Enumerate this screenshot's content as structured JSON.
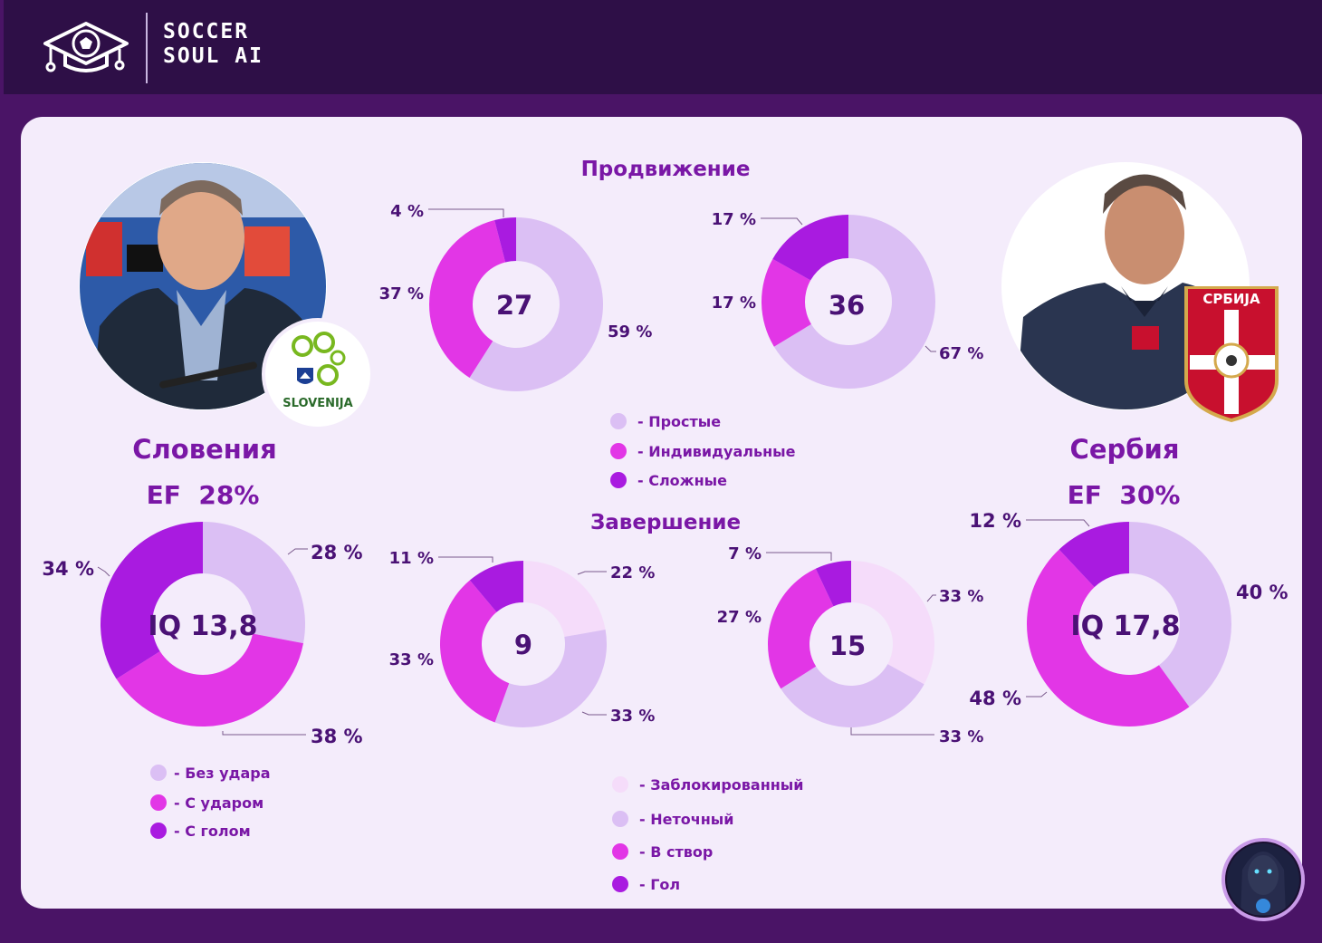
{
  "header": {
    "brand_line1": "SOCCER",
    "brand_line2": "SOUL AI"
  },
  "colors": {
    "lightest": "#f5dcfa",
    "light": "#dbbff4",
    "magenta": "#e236e6",
    "purple": "#a91be0",
    "text": "#7a17a6",
    "dark": "#3a1055"
  },
  "teams": {
    "left": {
      "name": "Словения",
      "ef": "EF  28%",
      "iq": "IQ 13,8",
      "badge_text": "SLOVENIJA"
    },
    "right": {
      "name": "Сербия",
      "ef": "EF  30%",
      "iq": "IQ 17,8",
      "badge_text": "СРБИЈА"
    }
  },
  "sections": {
    "progression": "Продвижение",
    "finishing": "Завершение"
  },
  "legends": {
    "progression": [
      {
        "label": "- Простые",
        "color": "#dbbff4"
      },
      {
        "label": "- Индивидуальные",
        "color": "#e236e6"
      },
      {
        "label": "- Сложные",
        "color": "#a91be0"
      }
    ],
    "finishing": [
      {
        "label": "- Заблокированный",
        "color": "#f5dcfa"
      },
      {
        "label": "- Неточный",
        "color": "#dbbff4"
      },
      {
        "label": "- В створ",
        "color": "#e236e6"
      },
      {
        "label": "- Гол",
        "color": "#a91be0"
      }
    ],
    "attack_end": [
      {
        "label": "- Без удара",
        "color": "#dbbff4"
      },
      {
        "label": "- С ударом",
        "color": "#e236e6"
      },
      {
        "label": "- С голом",
        "color": "#a91be0"
      }
    ]
  },
  "chart_data": [
    {
      "type": "pie",
      "id": "slovenia-attack-end",
      "center_label": "IQ 13,8",
      "categories": [
        "Без удара",
        "С ударом",
        "С голом"
      ],
      "values": [
        28,
        38,
        34
      ],
      "labels": [
        "28 %",
        "38 %",
        "34 %"
      ]
    },
    {
      "type": "pie",
      "id": "slovenia-progression",
      "center_label": "27",
      "categories": [
        "Простые",
        "Индивидуальные",
        "Сложные"
      ],
      "values": [
        59,
        37,
        4
      ],
      "labels": [
        "59 %",
        "37 %",
        "4 %"
      ]
    },
    {
      "type": "pie",
      "id": "serbia-progression",
      "center_label": "36",
      "categories": [
        "Простые",
        "Индивидуальные",
        "Сложные"
      ],
      "values": [
        67,
        17,
        17
      ],
      "labels": [
        "67 %",
        "17 %",
        "17 %"
      ]
    },
    {
      "type": "pie",
      "id": "slovenia-finishing",
      "center_label": "9",
      "categories": [
        "Заблокированный",
        "Неточный",
        "В створ",
        "Гол"
      ],
      "values": [
        22,
        33,
        33,
        11
      ],
      "labels": [
        "22 %",
        "33 %",
        "33 %",
        "11 %"
      ]
    },
    {
      "type": "pie",
      "id": "serbia-finishing",
      "center_label": "15",
      "categories": [
        "Заблокированный",
        "Неточный",
        "В створ",
        "Гол"
      ],
      "values": [
        33,
        33,
        27,
        7
      ],
      "labels": [
        "33 %",
        "33 %",
        "27 %",
        "7 %"
      ]
    },
    {
      "type": "pie",
      "id": "serbia-attack-end",
      "center_label": "IQ 17,8",
      "categories": [
        "Без удара",
        "С ударом",
        "С голом"
      ],
      "values": [
        40,
        48,
        12
      ],
      "labels": [
        "40 %",
        "48 %",
        "12 %"
      ]
    }
  ]
}
